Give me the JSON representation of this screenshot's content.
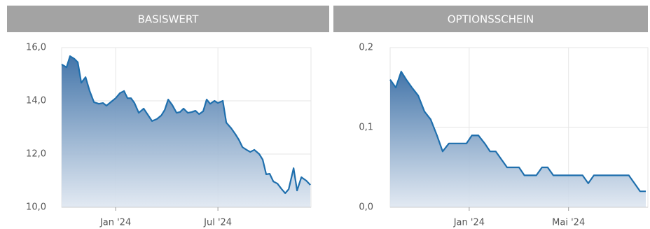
{
  "chart_data": [
    {
      "type": "area",
      "title": "BASISWERT",
      "color": "#1f6fad",
      "grid": true,
      "x": [
        2023.736,
        2023.76,
        2023.777,
        2023.798,
        2023.815,
        2023.832,
        2023.853,
        2023.873,
        2023.894,
        2023.918,
        2023.938,
        2023.955,
        2023.976,
        2024.0,
        2024.021,
        2024.041,
        2024.058,
        2024.075,
        2024.092,
        2024.113,
        2024.137,
        2024.158,
        2024.178,
        2024.202,
        2024.223,
        2024.24,
        2024.257,
        2024.277,
        2024.298,
        2024.315,
        2024.332,
        2024.353,
        2024.373,
        2024.39,
        2024.408,
        2024.428,
        2024.445,
        2024.462,
        2024.483,
        2024.5,
        2024.524,
        2024.541,
        2024.565,
        2024.586,
        2024.603,
        2024.62,
        2024.64,
        2024.658,
        2024.678,
        2024.702,
        2024.719,
        2024.736,
        2024.753,
        2024.771,
        2024.791,
        2024.812,
        2024.829,
        2024.846,
        2024.87,
        2024.887,
        2024.908,
        2024.932,
        2024.952
      ],
      "values": [
        15.37,
        15.26,
        15.68,
        15.58,
        15.45,
        14.68,
        14.89,
        14.37,
        13.95,
        13.89,
        13.92,
        13.82,
        13.95,
        14.1,
        14.29,
        14.37,
        14.1,
        14.1,
        13.92,
        13.55,
        13.71,
        13.47,
        13.24,
        13.32,
        13.45,
        13.66,
        14.05,
        13.84,
        13.55,
        13.58,
        13.71,
        13.55,
        13.58,
        13.63,
        13.5,
        13.61,
        14.05,
        13.89,
        14.0,
        13.92,
        14.0,
        13.18,
        12.97,
        12.74,
        12.53,
        12.26,
        12.16,
        12.08,
        12.16,
        12.0,
        11.79,
        11.24,
        11.26,
        10.97,
        10.89,
        10.68,
        10.53,
        10.68,
        11.47,
        10.63,
        11.13,
        11.0,
        10.84
      ],
      "xlim": [
        2023.736,
        2024.955
      ],
      "xticks": [
        {
          "value": 2024.0,
          "label": "Jan '24"
        },
        {
          "value": 2024.5,
          "label": "Jul '24"
        }
      ],
      "ylim": [
        10,
        16
      ],
      "yticks": [
        {
          "value": 10,
          "label": "10,0"
        },
        {
          "value": 12,
          "label": "12,0"
        },
        {
          "value": 14,
          "label": "14,0"
        },
        {
          "value": 16,
          "label": "16,0"
        }
      ]
    },
    {
      "type": "area",
      "title": "OPTIONSSCHEIN",
      "color": "#1f6fad",
      "grid": true,
      "x": [
        2023.735,
        2023.754,
        2023.772,
        2023.789,
        2023.808,
        2023.829,
        2023.85,
        2023.871,
        2023.892,
        2023.911,
        2023.932,
        2023.953,
        2023.974,
        2023.991,
        2024.009,
        2024.031,
        2024.052,
        2024.07,
        2024.089,
        2024.108,
        2024.127,
        2024.148,
        2024.167,
        2024.185,
        2024.204,
        2024.225,
        2024.244,
        2024.263,
        2024.282,
        2024.303,
        2024.322,
        2024.343,
        2024.362,
        2024.38,
        2024.399,
        2024.418,
        2024.439,
        2024.458,
        2024.477,
        2024.498,
        2024.516,
        2024.535,
        2024.554,
        2024.573,
        2024.592
      ],
      "values": [
        0.16,
        0.15,
        0.17,
        0.16,
        0.15,
        0.14,
        0.12,
        0.11,
        0.09,
        0.07,
        0.08,
        0.08,
        0.08,
        0.08,
        0.09,
        0.09,
        0.08,
        0.07,
        0.07,
        0.06,
        0.05,
        0.05,
        0.05,
        0.04,
        0.04,
        0.04,
        0.05,
        0.05,
        0.04,
        0.04,
        0.04,
        0.04,
        0.04,
        0.04,
        0.03,
        0.04,
        0.04,
        0.04,
        0.04,
        0.04,
        0.04,
        0.04,
        0.03,
        0.02,
        0.02
      ],
      "xlim": [
        2023.735,
        2024.599
      ],
      "xticks": [
        {
          "value": 2024.0,
          "label": "Jan '24"
        },
        {
          "value": 2024.333,
          "label": "Mai '24"
        }
      ],
      "ylim": [
        0,
        0.2
      ],
      "yticks": [
        {
          "value": 0,
          "label": "0,0"
        },
        {
          "value": 0.1,
          "label": "0,1"
        },
        {
          "value": 0.2,
          "label": "0,2"
        }
      ]
    }
  ]
}
